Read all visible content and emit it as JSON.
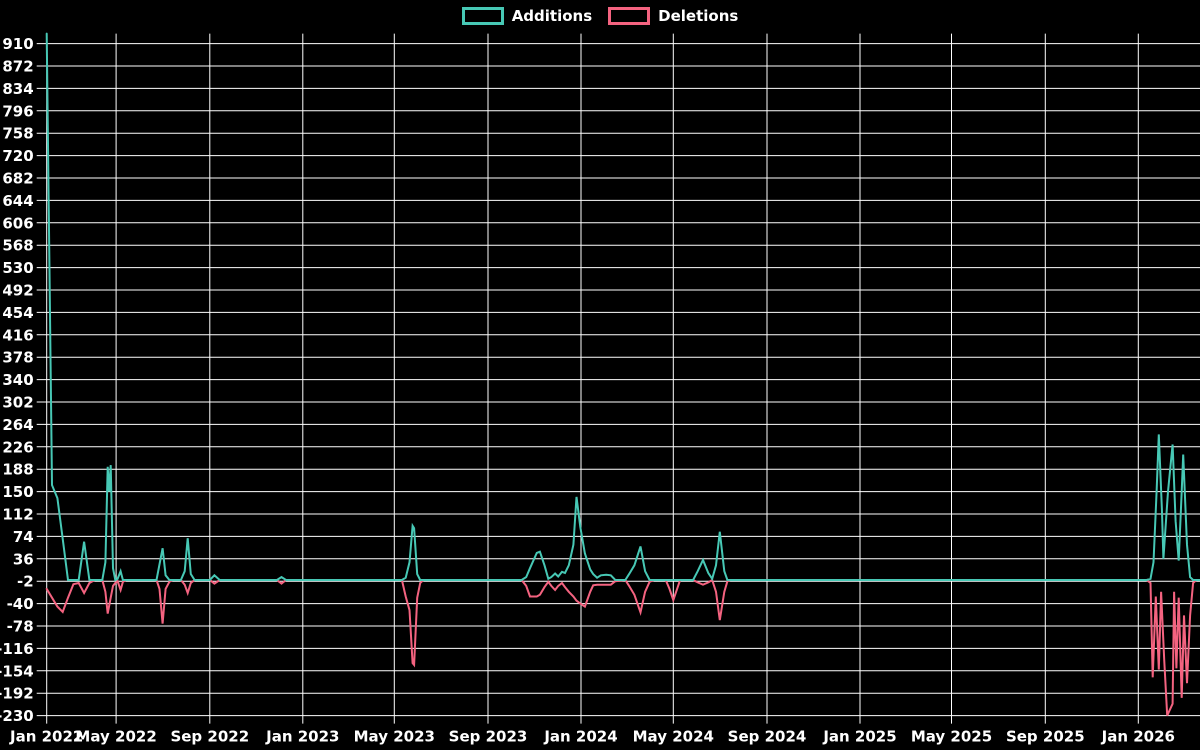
{
  "legend": [
    {
      "label": "Additions",
      "color": "#47C8B5"
    },
    {
      "label": "Deletions",
      "color": "#F46380"
    }
  ],
  "colors": {
    "background": "#000000",
    "grid": "#FFFFFF",
    "tick_text": "#FFFFFF",
    "additions": "#47C8B5",
    "deletions": "#F46380"
  },
  "chart_data": {
    "type": "line",
    "title": "",
    "xlabel": "",
    "ylabel": "",
    "grid": true,
    "legend_position": "top-center",
    "x_axis": {
      "start_date": "2022-01-30",
      "end_date": "2026-03-23",
      "ticks": [
        {
          "label": "Jan 2022",
          "date": "2022-01-30"
        },
        {
          "label": "May 2022",
          "date": "2022-05-01"
        },
        {
          "label": "Sep 2022",
          "date": "2022-09-01"
        },
        {
          "label": "Jan 2023",
          "date": "2023-01-01"
        },
        {
          "label": "May 2023",
          "date": "2023-05-01"
        },
        {
          "label": "Sep 2023",
          "date": "2023-09-01"
        },
        {
          "label": "Jan 2024",
          "date": "2024-01-01"
        },
        {
          "label": "May 2024",
          "date": "2024-05-01"
        },
        {
          "label": "Sep 2024",
          "date": "2024-09-01"
        },
        {
          "label": "Jan 2025",
          "date": "2025-01-01"
        },
        {
          "label": "May 2025",
          "date": "2025-05-01"
        },
        {
          "label": "Sep 2025",
          "date": "2025-09-01"
        },
        {
          "label": "Jan 2026",
          "date": "2026-01-01"
        }
      ]
    },
    "y_axis": {
      "min": -230,
      "max": 927,
      "tick_step": 38,
      "ticks": [
        910,
        872,
        834,
        796,
        758,
        720,
        682,
        644,
        606,
        568,
        530,
        492,
        454,
        416,
        378,
        340,
        302,
        264,
        226,
        188,
        150,
        112,
        74,
        36,
        -2,
        -40,
        -78,
        -116,
        -154,
        -192,
        -230
      ]
    },
    "series": [
      {
        "name": "Additions",
        "color": "#47C8B5",
        "points": [
          [
            "2022-01-30",
            927
          ],
          [
            "2022-02-06",
            161
          ],
          [
            "2022-02-13",
            139
          ],
          [
            "2022-02-20",
            70
          ],
          [
            "2022-02-27",
            0
          ],
          [
            "2022-03-13",
            0
          ],
          [
            "2022-03-20",
            65
          ],
          [
            "2022-03-27",
            0
          ],
          [
            "2022-04-13",
            0
          ],
          [
            "2022-04-17",
            30
          ],
          [
            "2022-04-20",
            192
          ],
          [
            "2022-04-22",
            150
          ],
          [
            "2022-04-24",
            195
          ],
          [
            "2022-04-27",
            20
          ],
          [
            "2022-04-30",
            0
          ],
          [
            "2022-05-03",
            2
          ],
          [
            "2022-05-07",
            15
          ],
          [
            "2022-05-10",
            0
          ],
          [
            "2022-06-23",
            0
          ],
          [
            "2022-07-01",
            54
          ],
          [
            "2022-07-05",
            8
          ],
          [
            "2022-07-10",
            0
          ],
          [
            "2022-07-25",
            0
          ],
          [
            "2022-07-30",
            15
          ],
          [
            "2022-08-03",
            71
          ],
          [
            "2022-08-07",
            10
          ],
          [
            "2022-08-12",
            0
          ],
          [
            "2022-09-01",
            0
          ],
          [
            "2022-09-07",
            8
          ],
          [
            "2022-09-14",
            0
          ],
          [
            "2022-11-28",
            0
          ],
          [
            "2022-12-04",
            5
          ],
          [
            "2022-12-10",
            0
          ],
          [
            "2023-05-11",
            0
          ],
          [
            "2023-05-16",
            4
          ],
          [
            "2023-05-21",
            30
          ],
          [
            "2023-05-25",
            92
          ],
          [
            "2023-05-27",
            88
          ],
          [
            "2023-05-31",
            10
          ],
          [
            "2023-06-04",
            0
          ],
          [
            "2023-10-15",
            0
          ],
          [
            "2023-10-21",
            5
          ],
          [
            "2023-10-26",
            20
          ],
          [
            "2023-11-04",
            46
          ],
          [
            "2023-11-08",
            48
          ],
          [
            "2023-11-14",
            25
          ],
          [
            "2023-11-19",
            2
          ],
          [
            "2023-11-23",
            5
          ],
          [
            "2023-11-28",
            11
          ],
          [
            "2023-12-02",
            6
          ],
          [
            "2023-12-07",
            14
          ],
          [
            "2023-12-11",
            12
          ],
          [
            "2023-12-16",
            25
          ],
          [
            "2023-12-22",
            60
          ],
          [
            "2023-12-26",
            141
          ],
          [
            "2023-12-31",
            90
          ],
          [
            "2024-01-06",
            45
          ],
          [
            "2024-01-13",
            18
          ],
          [
            "2024-01-17",
            10
          ],
          [
            "2024-01-22",
            4
          ],
          [
            "2024-01-27",
            8
          ],
          [
            "2024-02-03",
            9
          ],
          [
            "2024-02-09",
            8
          ],
          [
            "2024-02-15",
            0
          ],
          [
            "2024-02-28",
            0
          ],
          [
            "2024-03-04",
            10
          ],
          [
            "2024-03-11",
            25
          ],
          [
            "2024-03-19",
            57
          ],
          [
            "2024-03-25",
            15
          ],
          [
            "2024-03-31",
            0
          ],
          [
            "2024-05-27",
            0
          ],
          [
            "2024-06-02",
            15
          ],
          [
            "2024-06-09",
            34
          ],
          [
            "2024-06-16",
            12
          ],
          [
            "2024-06-21",
            2
          ],
          [
            "2024-06-26",
            25
          ],
          [
            "2024-07-01",
            82
          ],
          [
            "2024-07-07",
            15
          ],
          [
            "2024-07-11",
            0
          ],
          [
            "2026-01-12",
            0
          ],
          [
            "2026-01-17",
            2
          ],
          [
            "2026-01-21",
            30
          ],
          [
            "2026-01-25",
            150
          ],
          [
            "2026-01-28",
            247
          ],
          [
            "2026-02-01",
            120
          ],
          [
            "2026-02-03",
            36
          ],
          [
            "2026-02-09",
            150
          ],
          [
            "2026-02-15",
            230
          ],
          [
            "2026-02-19",
            100
          ],
          [
            "2026-02-23",
            33
          ],
          [
            "2026-02-27",
            150
          ],
          [
            "2026-03-01",
            213
          ],
          [
            "2026-03-06",
            60
          ],
          [
            "2026-03-10",
            5
          ],
          [
            "2026-03-14",
            0
          ],
          [
            "2026-03-23",
            0
          ]
        ]
      },
      {
        "name": "Deletions",
        "color": "#F46380",
        "points": [
          [
            "2022-01-30",
            -15
          ],
          [
            "2022-02-06",
            -30
          ],
          [
            "2022-02-13",
            -45
          ],
          [
            "2022-02-20",
            -54
          ],
          [
            "2022-02-27",
            -30
          ],
          [
            "2022-03-06",
            -7
          ],
          [
            "2022-03-13",
            -5
          ],
          [
            "2022-03-20",
            -22
          ],
          [
            "2022-03-27",
            -5
          ],
          [
            "2022-04-03",
            0
          ],
          [
            "2022-04-13",
            0
          ],
          [
            "2022-04-17",
            -20
          ],
          [
            "2022-04-20",
            -57
          ],
          [
            "2022-04-24",
            -30
          ],
          [
            "2022-04-27",
            -10
          ],
          [
            "2022-04-30",
            -5
          ],
          [
            "2022-05-03",
            -2
          ],
          [
            "2022-05-07",
            -17
          ],
          [
            "2022-05-10",
            -3
          ],
          [
            "2022-05-14",
            0
          ],
          [
            "2022-06-23",
            0
          ],
          [
            "2022-06-27",
            -15
          ],
          [
            "2022-07-01",
            -74
          ],
          [
            "2022-07-05",
            -15
          ],
          [
            "2022-07-10",
            -3
          ],
          [
            "2022-07-14",
            0
          ],
          [
            "2022-07-25",
            0
          ],
          [
            "2022-07-30",
            -8
          ],
          [
            "2022-08-03",
            -22
          ],
          [
            "2022-08-07",
            -5
          ],
          [
            "2022-08-12",
            0
          ],
          [
            "2022-09-01",
            0
          ],
          [
            "2022-09-07",
            -6
          ],
          [
            "2022-09-14",
            0
          ],
          [
            "2022-11-28",
            0
          ],
          [
            "2022-12-04",
            -6
          ],
          [
            "2022-12-10",
            0
          ],
          [
            "2023-05-11",
            0
          ],
          [
            "2023-05-16",
            -28
          ],
          [
            "2023-05-21",
            -51
          ],
          [
            "2023-05-25",
            -141
          ],
          [
            "2023-05-27",
            -144
          ],
          [
            "2023-05-31",
            -30
          ],
          [
            "2023-06-04",
            -5
          ],
          [
            "2023-06-08",
            0
          ],
          [
            "2023-10-15",
            0
          ],
          [
            "2023-10-21",
            -10
          ],
          [
            "2023-10-26",
            -28
          ],
          [
            "2023-11-04",
            -28
          ],
          [
            "2023-11-08",
            -25
          ],
          [
            "2023-11-14",
            -12
          ],
          [
            "2023-11-19",
            -3
          ],
          [
            "2023-11-23",
            -10
          ],
          [
            "2023-11-28",
            -17
          ],
          [
            "2023-12-02",
            -10
          ],
          [
            "2023-12-07",
            -5
          ],
          [
            "2023-12-11",
            -12
          ],
          [
            "2023-12-16",
            -20
          ],
          [
            "2023-12-22",
            -28
          ],
          [
            "2023-12-26",
            -35
          ],
          [
            "2023-12-31",
            -40
          ],
          [
            "2024-01-06",
            -45
          ],
          [
            "2024-01-13",
            -20
          ],
          [
            "2024-01-17",
            -9
          ],
          [
            "2024-01-22",
            -8
          ],
          [
            "2024-02-03",
            -8
          ],
          [
            "2024-02-09",
            -8
          ],
          [
            "2024-02-15",
            -2
          ],
          [
            "2024-02-28",
            0
          ],
          [
            "2024-03-04",
            -10
          ],
          [
            "2024-03-11",
            -25
          ],
          [
            "2024-03-19",
            -55
          ],
          [
            "2024-03-25",
            -20
          ],
          [
            "2024-03-31",
            -3
          ],
          [
            "2024-04-06",
            0
          ],
          [
            "2024-04-21",
            0
          ],
          [
            "2024-04-26",
            -15
          ],
          [
            "2024-05-01",
            -34
          ],
          [
            "2024-05-06",
            -15
          ],
          [
            "2024-05-10",
            0
          ],
          [
            "2024-05-27",
            0
          ],
          [
            "2024-06-02",
            -4
          ],
          [
            "2024-06-09",
            -8
          ],
          [
            "2024-06-16",
            -4
          ],
          [
            "2024-06-21",
            0
          ],
          [
            "2024-06-26",
            -20
          ],
          [
            "2024-07-01",
            -68
          ],
          [
            "2024-07-07",
            -20
          ],
          [
            "2024-07-11",
            -2
          ],
          [
            "2024-07-15",
            0
          ],
          [
            "2026-01-12",
            0
          ],
          [
            "2026-01-17",
            -5
          ],
          [
            "2026-01-20",
            -165
          ],
          [
            "2026-01-24",
            -28
          ],
          [
            "2026-01-28",
            -152
          ],
          [
            "2026-01-31",
            -20
          ],
          [
            "2026-02-04",
            -135
          ],
          [
            "2026-02-08",
            -230
          ],
          [
            "2026-02-15",
            -210
          ],
          [
            "2026-02-17",
            -20
          ],
          [
            "2026-02-20",
            -150
          ],
          [
            "2026-02-23",
            -30
          ],
          [
            "2026-02-27",
            -200
          ],
          [
            "2026-03-02",
            -60
          ],
          [
            "2026-03-06",
            -175
          ],
          [
            "2026-03-10",
            -60
          ],
          [
            "2026-03-14",
            -5
          ],
          [
            "2026-03-18",
            0
          ],
          [
            "2026-03-23",
            0
          ]
        ]
      }
    ]
  }
}
